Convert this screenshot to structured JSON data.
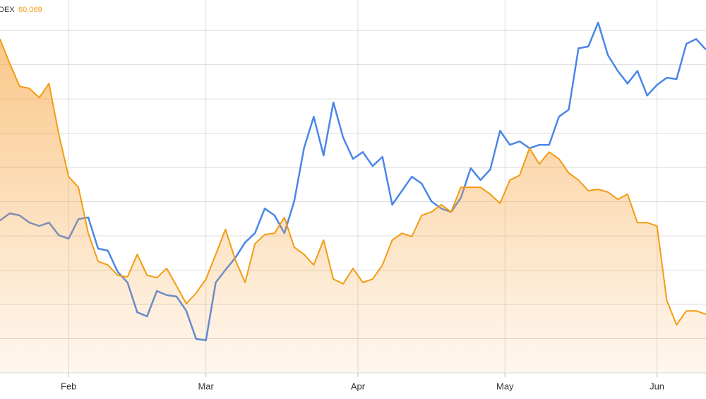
{
  "chart_data": {
    "type": "line",
    "legend": {
      "label": "DEX",
      "value": "60,069"
    },
    "x": [
      18,
      20,
      22,
      24,
      26,
      28,
      30,
      32,
      34,
      36,
      38,
      40,
      42,
      44,
      46,
      48,
      50,
      52,
      54,
      56,
      58,
      60,
      62,
      64,
      66,
      68,
      70,
      72,
      74,
      76,
      78,
      80,
      82,
      84,
      86,
      88,
      90,
      92,
      94,
      96,
      98,
      100,
      102,
      104,
      106,
      108,
      110,
      112,
      114,
      116,
      118,
      120,
      122,
      124,
      126,
      128,
      130,
      132,
      134,
      136,
      138,
      140,
      142,
      144,
      146,
      148,
      150,
      152,
      154,
      156,
      158,
      160,
      162
    ],
    "series": [
      {
        "color": "#4a86e8",
        "fill": false,
        "values": [
          4.45,
          4.66,
          4.6,
          4.39,
          4.29,
          4.39,
          4.02,
          3.92,
          4.49,
          4.54,
          3.63,
          3.57,
          2.95,
          2.64,
          1.77,
          1.65,
          2.39,
          2.27,
          2.23,
          1.81,
          0.99,
          0.95,
          2.64,
          3.01,
          3.36,
          3.81,
          4.08,
          4.8,
          4.6,
          4.08,
          5.01,
          6.56,
          7.48,
          6.35,
          7.9,
          6.87,
          6.25,
          6.45,
          6.04,
          6.31,
          4.91,
          5.32,
          5.73,
          5.53,
          5.01,
          4.8,
          4.7,
          5.11,
          5.98,
          5.63,
          5.94,
          7.07,
          6.66,
          6.76,
          6.56,
          6.66,
          6.66,
          7.48,
          7.69,
          9.48,
          9.53,
          10.23,
          9.28,
          8.82,
          8.45,
          8.82,
          8.1,
          8.41,
          8.62,
          8.58,
          9.61,
          9.75,
          9.44
        ]
      },
      {
        "color": "#f39c12",
        "fill": true,
        "values": [
          9.75,
          9.03,
          8.37,
          8.31,
          8.04,
          8.45,
          6.97,
          5.73,
          5.42,
          4.08,
          3.26,
          3.15,
          2.85,
          2.8,
          3.46,
          2.85,
          2.78,
          3.05,
          2.54,
          2.02,
          2.33,
          2.74,
          3.46,
          4.19,
          3.3,
          2.64,
          3.77,
          4.04,
          4.08,
          4.54,
          3.67,
          3.46,
          3.15,
          3.88,
          2.74,
          2.6,
          3.05,
          2.64,
          2.74,
          3.15,
          3.88,
          4.08,
          3.98,
          4.6,
          4.7,
          4.91,
          4.7,
          5.42,
          5.42,
          5.42,
          5.22,
          4.95,
          5.63,
          5.77,
          6.56,
          6.1,
          6.45,
          6.25,
          5.84,
          5.63,
          5.32,
          5.36,
          5.28,
          5.07,
          5.22,
          4.39,
          4.39,
          4.29,
          2.12,
          1.4,
          1.81,
          1.81,
          1.71
        ]
      }
    ],
    "xlim": [
      18,
      162
    ],
    "xticks": [
      {
        "value": 32,
        "label": "Feb"
      },
      {
        "value": 60,
        "label": "Mar"
      },
      {
        "value": 91,
        "label": "Apr"
      },
      {
        "value": 121,
        "label": "May"
      },
      {
        "value": 152,
        "label": "Jun"
      }
    ],
    "ylim": [
      0,
      10.89
    ],
    "ygrid": [
      0,
      1,
      2,
      3,
      4,
      5,
      6,
      7,
      8,
      9,
      10
    ],
    "grid": true
  }
}
